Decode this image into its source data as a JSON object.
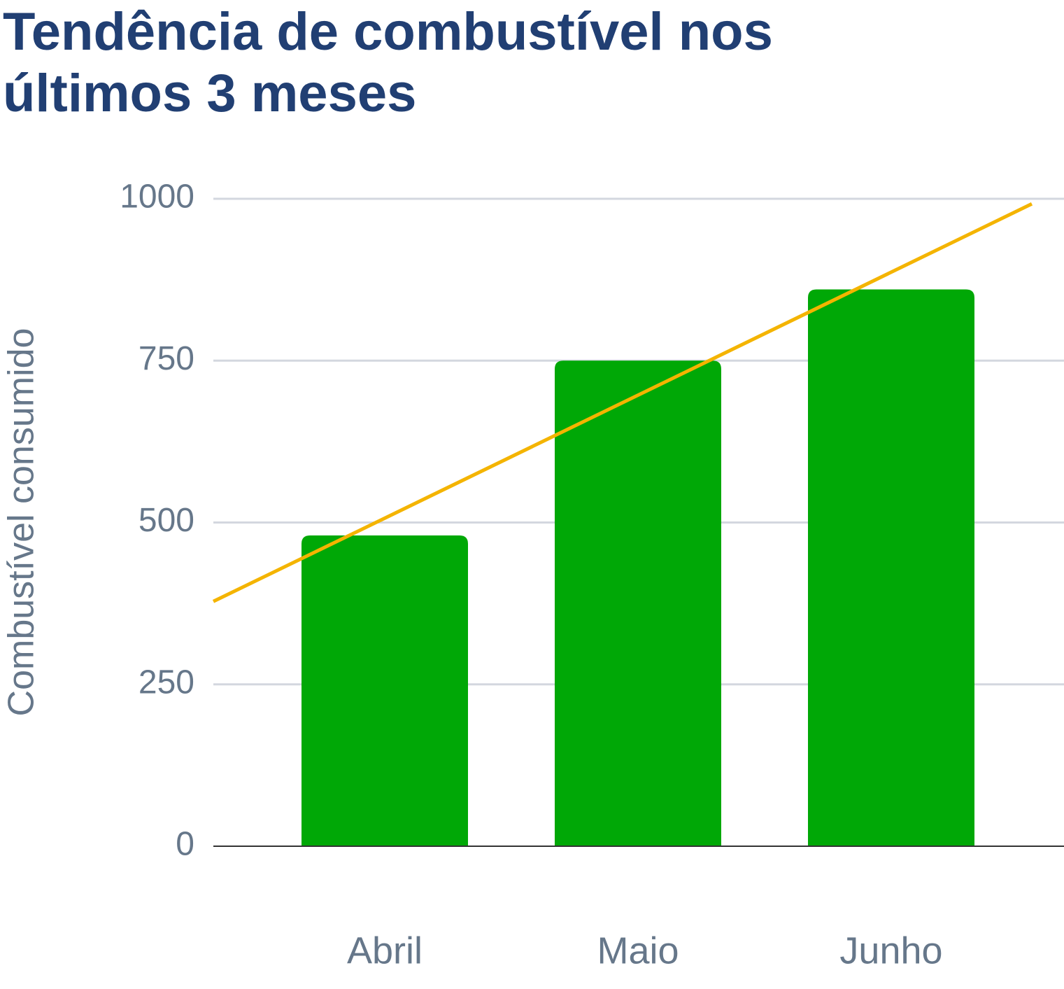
{
  "chart_data": {
    "type": "bar",
    "title": "Tendência de combustível nos últimos 3 meses",
    "y_label": "Combustível consumido",
    "categories": [
      "Abril",
      "Maio",
      "Junho"
    ],
    "values": [
      480,
      750,
      860
    ],
    "color": "#00a806",
    "trendline": {
      "color": "#f4b400"
    },
    "ylim": [
      0,
      1000
    ],
    "yticks": [
      0,
      250,
      500,
      750,
      1000
    ],
    "grid": true
  }
}
